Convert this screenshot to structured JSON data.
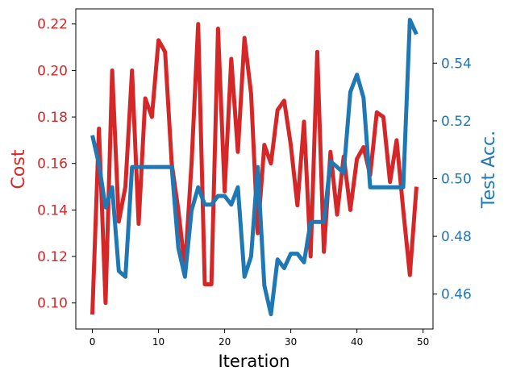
{
  "chart_data": {
    "type": "line",
    "title": "",
    "xlabel": "Iteration",
    "xlim": [
      -2.5,
      51.5
    ],
    "xticks": [
      0,
      10,
      20,
      30,
      40,
      50
    ],
    "x": [
      0,
      1,
      2,
      3,
      4,
      5,
      6,
      7,
      8,
      9,
      10,
      11,
      12,
      13,
      14,
      15,
      16,
      17,
      18,
      19,
      20,
      21,
      22,
      23,
      24,
      25,
      26,
      27,
      28,
      29,
      30,
      31,
      32,
      33,
      34,
      35,
      36,
      37,
      38,
      39,
      40,
      41,
      42,
      43,
      44,
      45,
      46,
      47,
      48,
      49
    ],
    "series": [
      {
        "name": "Cost",
        "axis": "left",
        "color": "#d62728",
        "values": [
          0.095,
          0.175,
          0.1,
          0.2,
          0.135,
          0.15,
          0.2,
          0.134,
          0.188,
          0.18,
          0.213,
          0.208,
          0.16,
          0.14,
          0.115,
          0.16,
          0.22,
          0.108,
          0.108,
          0.218,
          0.148,
          0.205,
          0.165,
          0.214,
          0.19,
          0.13,
          0.168,
          0.16,
          0.183,
          0.187,
          0.168,
          0.142,
          0.178,
          0.12,
          0.208,
          0.122,
          0.165,
          0.138,
          0.163,
          0.14,
          0.162,
          0.167,
          0.155,
          0.182,
          0.18,
          0.152,
          0.17,
          0.14,
          0.112,
          0.15
        ]
      },
      {
        "name": "Test Acc.",
        "axis": "right",
        "color": "#1f77b4",
        "values": [
          0.515,
          0.505,
          0.49,
          0.497,
          0.468,
          0.466,
          0.504,
          0.504,
          0.504,
          0.504,
          0.504,
          0.504,
          0.504,
          0.476,
          0.466,
          0.489,
          0.497,
          0.491,
          0.491,
          0.494,
          0.494,
          0.491,
          0.497,
          0.466,
          0.473,
          0.504,
          0.463,
          0.453,
          0.472,
          0.469,
          0.474,
          0.474,
          0.471,
          0.485,
          0.485,
          0.485,
          0.506,
          0.504,
          0.502,
          0.53,
          0.536,
          0.528,
          0.497,
          0.497,
          0.497,
          0.497,
          0.497,
          0.497,
          0.555,
          0.55
        ]
      }
    ],
    "left_axis": {
      "label": "Cost",
      "color": "#d62728",
      "ylim": [
        0.0888,
        0.2265
      ],
      "ticks": [
        0.1,
        0.12,
        0.14,
        0.16,
        0.18,
        0.2,
        0.22
      ],
      "tick_labels": [
        "0.10",
        "0.12",
        "0.14",
        "0.16",
        "0.18",
        "0.20",
        "0.22"
      ]
    },
    "right_axis": {
      "label": "Test Acc.",
      "color": "#1f77b4",
      "ylim": [
        0.4479,
        0.5588
      ],
      "ticks": [
        0.46,
        0.48,
        0.5,
        0.52,
        0.54
      ],
      "tick_labels": [
        "0.46",
        "0.48",
        "0.50",
        "0.52",
        "0.54"
      ]
    },
    "grid": false,
    "legend": "none"
  }
}
